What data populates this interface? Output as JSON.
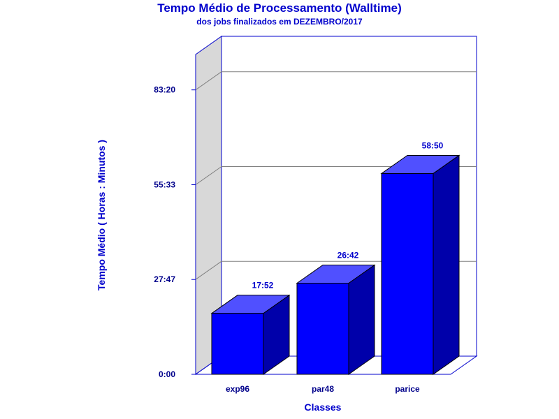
{
  "chart_data": {
    "type": "bar",
    "title": "Tempo Médio de Processamento (Walltime)",
    "subtitle": "dos jobs finalizados em DEZEMBRO/2017",
    "xlabel": "Classes",
    "ylabel": "Tempo Médio ( Horas : Minutos )",
    "categories": [
      "exp96",
      "par48",
      "parice"
    ],
    "values": [
      17.867,
      26.7,
      58.833
    ],
    "value_labels": [
      "17:52",
      "26:42",
      "58:50"
    ],
    "yticks": [
      0,
      27.783,
      55.55,
      83.333
    ],
    "ytick_labels": [
      "0:00",
      "27:47",
      "55:33",
      "83:20"
    ],
    "ylim": [
      0,
      88.9
    ],
    "grid": true,
    "legend": "none",
    "colors": {
      "bar_front": "#0000ff",
      "bar_side": "#0000aa",
      "bar_top": "#5050ff",
      "frame": "#0000cc",
      "wall": "#d8d8d8",
      "text": "#0000cc"
    }
  }
}
